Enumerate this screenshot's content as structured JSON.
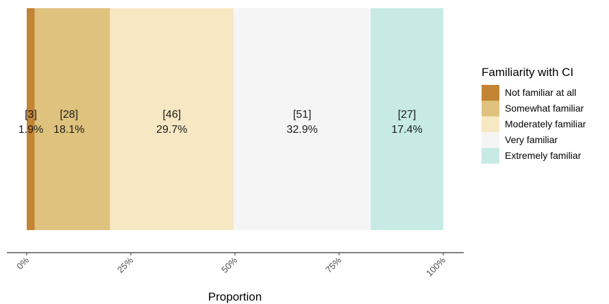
{
  "chart_data": {
    "type": "bar",
    "orientation": "horizontal-stacked-100",
    "xlabel": "Proportion",
    "xlim": [
      0,
      1
    ],
    "x_ticks": [
      {
        "value": 0,
        "label": "0%"
      },
      {
        "value": 0.25,
        "label": "25%"
      },
      {
        "value": 0.5,
        "label": "50%"
      },
      {
        "value": 0.75,
        "label": "75%"
      },
      {
        "value": 1,
        "label": "100%"
      }
    ],
    "legend": {
      "title": "Familiarity with CI",
      "position": "right"
    },
    "series": [
      {
        "name": "Not familiar at all",
        "count": 3,
        "count_label": "[3]",
        "percent": 1.9,
        "percent_label": "1.9%",
        "color": "#c38434"
      },
      {
        "name": "Somewhat familiar",
        "count": 28,
        "count_label": "[28]",
        "percent": 18.1,
        "percent_label": "18.1%",
        "color": "#dfc27d"
      },
      {
        "name": "Moderately familiar",
        "count": 46,
        "count_label": "[46]",
        "percent": 29.7,
        "percent_label": "29.7%",
        "color": "#f6e8c3"
      },
      {
        "name": "Very familiar",
        "count": 51,
        "count_label": "[51]",
        "percent": 32.9,
        "percent_label": "32.9%",
        "color": "#f5f5f5"
      },
      {
        "name": "Extremely familiar",
        "count": 27,
        "count_label": "[27]",
        "percent": 17.4,
        "percent_label": "17.4%",
        "color": "#c7eae5"
      }
    ],
    "grid": false
  }
}
